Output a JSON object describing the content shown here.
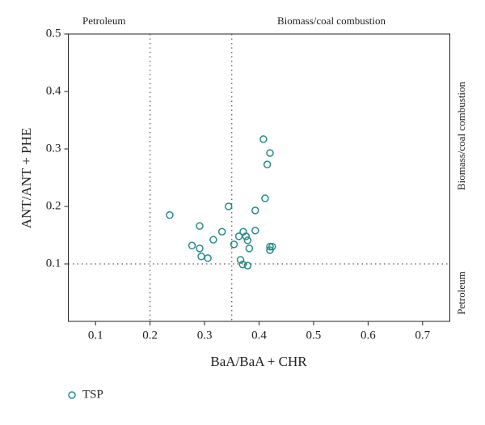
{
  "chart_data": {
    "type": "scatter",
    "x_label": "BaA/BaA + CHR",
    "y_label": "ANT/ANT + PHE",
    "xlim": [
      0.05,
      0.75
    ],
    "xticks": [
      0.1,
      0.2,
      0.3,
      0.4,
      0.5,
      0.6,
      0.7
    ],
    "ylim": [
      0,
      0.5
    ],
    "yticks": [
      0.1,
      0.2,
      0.3,
      0.4,
      0.5
    ],
    "reference_lines": {
      "x": [
        0.2,
        0.35
      ],
      "y": [
        0.1
      ]
    },
    "annotations": {
      "top_left": "Petroleum",
      "top_right": "Biomass/coal combustion",
      "right_upper": "Biomass/coal combustion",
      "right_lower": "Petroleum"
    },
    "legend": "bottom-left",
    "series": [
      {
        "name": "TSP",
        "color": "#2a8a8a",
        "x": [
          0.236,
          0.291,
          0.277,
          0.291,
          0.294,
          0.306,
          0.316,
          0.332,
          0.344,
          0.354,
          0.363,
          0.371,
          0.376,
          0.379,
          0.382,
          0.366,
          0.37,
          0.379,
          0.393,
          0.393,
          0.411,
          0.408,
          0.42,
          0.415,
          0.42,
          0.424,
          0.42
        ],
        "values": [
          0.185,
          0.166,
          0.132,
          0.127,
          0.113,
          0.11,
          0.142,
          0.156,
          0.2,
          0.134,
          0.148,
          0.156,
          0.148,
          0.141,
          0.127,
          0.107,
          0.099,
          0.097,
          0.158,
          0.193,
          0.214,
          0.317,
          0.293,
          0.273,
          0.13,
          0.13,
          0.124
        ]
      }
    ]
  }
}
